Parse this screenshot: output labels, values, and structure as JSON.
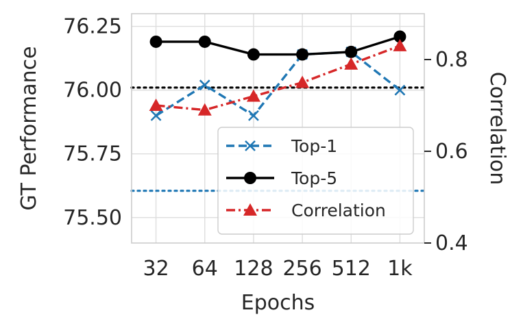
{
  "chart_data": {
    "type": "line",
    "title": "",
    "xlabel": "Epochs",
    "ylabel": "GT Performance",
    "y2label": "Correlation",
    "categories": [
      "32",
      "64",
      "128",
      "256",
      "512",
      "1k"
    ],
    "ylim": [
      75.4,
      76.3
    ],
    "y2lim": [
      0.4,
      0.9
    ],
    "yticks": [
      "75.50",
      "75.75",
      "76.00",
      "76.25"
    ],
    "y2ticks": [
      "0.4",
      "0.6",
      "0.8"
    ],
    "grid": true,
    "legend_position": "lower-right",
    "series": [
      {
        "name": "Top-1",
        "axis": "left",
        "color": "#1f77b4",
        "style": "dashed",
        "marker": "x",
        "values": [
          75.9,
          76.02,
          75.9,
          76.14,
          76.15,
          76.0
        ]
      },
      {
        "name": "Top-5",
        "axis": "left",
        "color": "#000000",
        "style": "solid",
        "marker": "circle",
        "values": [
          76.19,
          76.19,
          76.14,
          76.14,
          76.15,
          76.21
        ]
      },
      {
        "name": "Correlation",
        "axis": "right",
        "color": "#d62728",
        "style": "dashdot",
        "marker": "triangle",
        "values": [
          0.7,
          0.69,
          0.72,
          0.75,
          0.79,
          0.83
        ]
      }
    ],
    "reference_lines": [
      {
        "axis": "left",
        "value": 76.01,
        "color": "#000000",
        "style": "dotted"
      },
      {
        "axis": "left",
        "value": 75.605,
        "color": "#1f77b4",
        "style": "dotted"
      }
    ]
  }
}
